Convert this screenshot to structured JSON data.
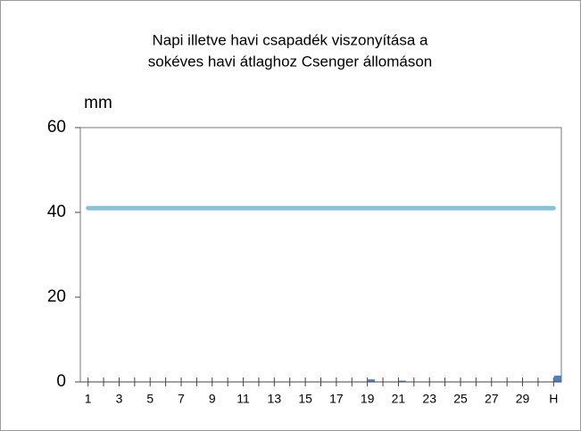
{
  "chart_data": {
    "type": "bar",
    "title_lines": [
      "Napi illetve havi csapadék viszonyítása a",
      "sokéves havi átlaghoz Csenger állomáson"
    ],
    "y_label": "mm",
    "categories": [
      "1",
      null,
      "3",
      null,
      "5",
      null,
      "7",
      null,
      "9",
      null,
      "11",
      null,
      "13",
      null,
      "15",
      null,
      "17",
      null,
      "19",
      null,
      "21",
      null,
      "23",
      null,
      "25",
      null,
      "27",
      null,
      "29",
      null,
      "H"
    ],
    "series": [
      {
        "type": "bar",
        "color": "#4f7fc8",
        "values": [
          0,
          0,
          0,
          0,
          0,
          0,
          0,
          0,
          0,
          0,
          0,
          0,
          0,
          0,
          0,
          0,
          0,
          0,
          0.6,
          0,
          0.3,
          0,
          0,
          0,
          0,
          0,
          0,
          0,
          0,
          0,
          1.5
        ]
      },
      {
        "type": "line",
        "color": "#86c3d8",
        "values": [
          41,
          41,
          41,
          41,
          41,
          41,
          41,
          41,
          41,
          41,
          41,
          41,
          41,
          41,
          41,
          41,
          41,
          41,
          41,
          41,
          41,
          41,
          41,
          41,
          41,
          41,
          41,
          41,
          41,
          41,
          41
        ]
      }
    ],
    "ylim": [
      0,
      60
    ],
    "yticks": [
      0,
      20,
      40,
      60
    ]
  }
}
